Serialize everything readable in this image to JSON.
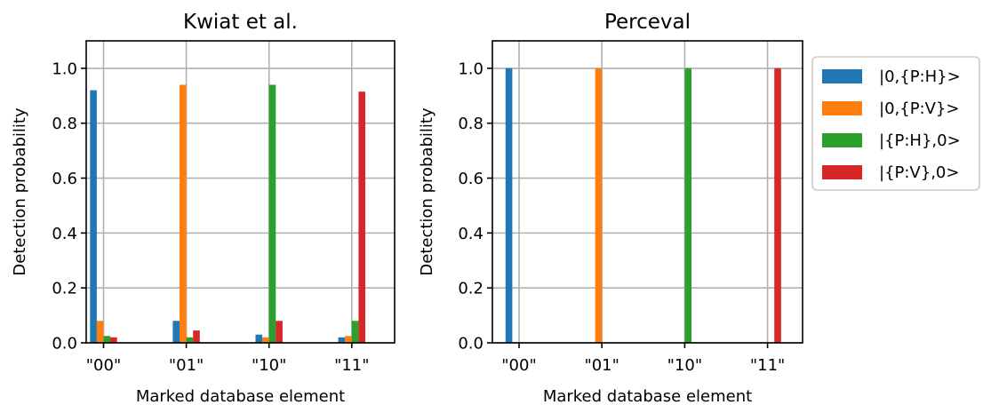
{
  "chart_data": [
    {
      "type": "bar",
      "title": "Kwiat et al.",
      "xlabel": "Marked database element",
      "ylabel": "Detection probability",
      "ylim": [
        0,
        1.1
      ],
      "yticks": [
        0.0,
        0.2,
        0.4,
        0.6,
        0.8,
        1.0
      ],
      "ytick_labels": [
        "0.0",
        "0.2",
        "0.4",
        "0.6",
        "0.8",
        "1.0"
      ],
      "grid": true,
      "categories": [
        "\"00\"",
        "\"01\"",
        "\"10\"",
        "\"11\""
      ],
      "series": [
        {
          "name": "|0,{P:H}>",
          "color": "#1f77b4",
          "values": [
            0.92,
            0.08,
            0.03,
            0.02
          ]
        },
        {
          "name": "|0,{P:V}>",
          "color": "#ff7f0e",
          "values": [
            0.08,
            0.94,
            0.02,
            0.025
          ]
        },
        {
          "name": "|{P:H},0>",
          "color": "#2ca02c",
          "values": [
            0.025,
            0.02,
            0.94,
            0.08
          ]
        },
        {
          "name": "|{P:V},0>",
          "color": "#d62728",
          "values": [
            0.02,
            0.045,
            0.08,
            0.915
          ]
        }
      ]
    },
    {
      "type": "bar",
      "title": "Perceval",
      "xlabel": "Marked database element",
      "ylabel": "Detection probability",
      "ylim": [
        0,
        1.1
      ],
      "yticks": [
        0.0,
        0.2,
        0.4,
        0.6,
        0.8,
        1.0
      ],
      "ytick_labels": [
        "0.0",
        "0.2",
        "0.4",
        "0.6",
        "0.8",
        "1.0"
      ],
      "grid": true,
      "legend_position": "outside-right",
      "categories": [
        "\"00\"",
        "\"01\"",
        "\"10\"",
        "\"11\""
      ],
      "series": [
        {
          "name": "|0,{P:H}>",
          "color": "#1f77b4",
          "values": [
            1.0,
            0.0,
            0.0,
            0.0
          ]
        },
        {
          "name": "|0,{P:V}>",
          "color": "#ff7f0e",
          "values": [
            0.0,
            1.0,
            0.0,
            0.0
          ]
        },
        {
          "name": "|{P:H},0>",
          "color": "#2ca02c",
          "values": [
            0.0,
            0.0,
            1.0,
            0.0
          ]
        },
        {
          "name": "|{P:V},0>",
          "color": "#d62728",
          "values": [
            0.0,
            0.0,
            0.0,
            1.0
          ]
        }
      ]
    }
  ]
}
